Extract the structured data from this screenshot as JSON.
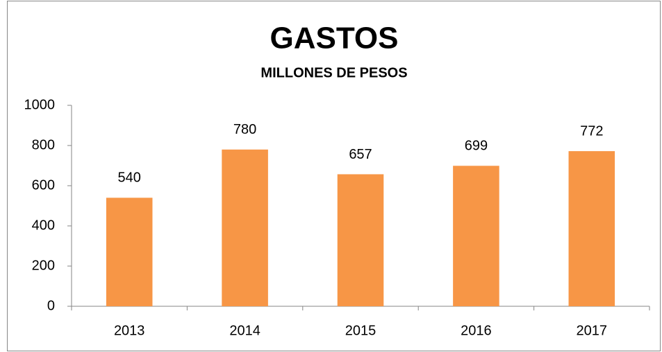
{
  "chart_data": {
    "type": "bar",
    "title": "GASTOS",
    "subtitle": "MILLONES DE PESOS",
    "categories": [
      "2013",
      "2014",
      "2015",
      "2016",
      "2017"
    ],
    "values": [
      540,
      780,
      657,
      699,
      772
    ],
    "color": "#f79646",
    "ylim": [
      0,
      1000
    ],
    "yticks": [
      0,
      200,
      400,
      600,
      800,
      1000
    ],
    "grid": false
  }
}
